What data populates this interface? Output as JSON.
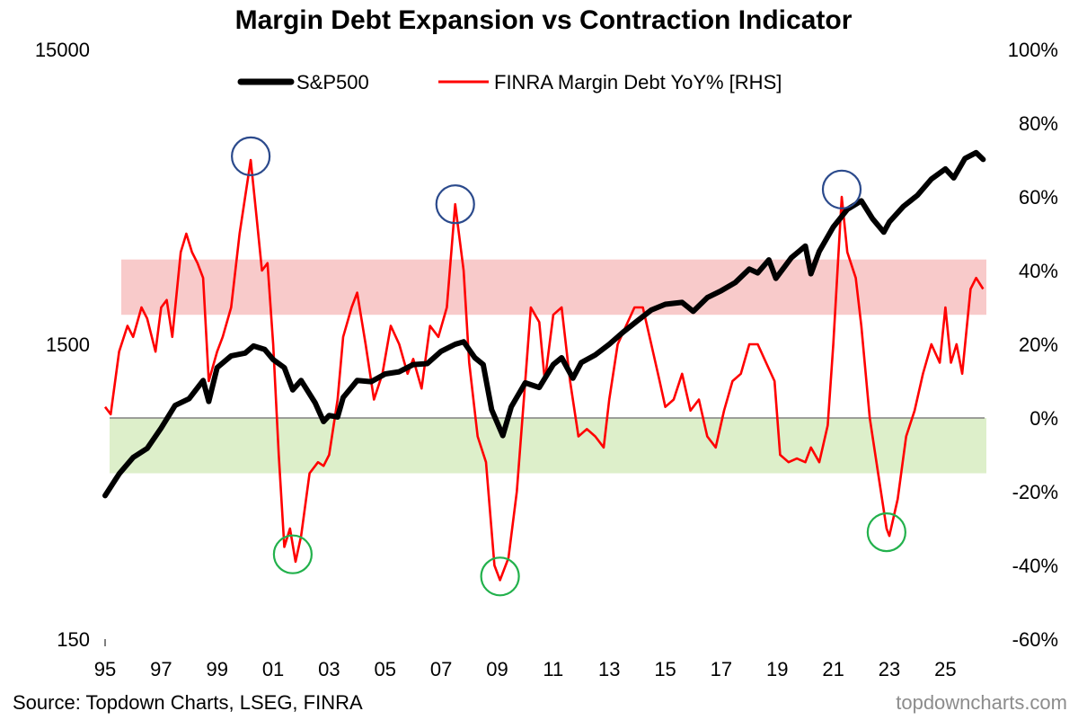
{
  "chart_data": {
    "type": "line",
    "title": "Margin Debt Expansion vs Contraction Indicator",
    "x_ticks": [
      "95",
      "97",
      "99",
      "01",
      "03",
      "05",
      "07",
      "09",
      "11",
      "13",
      "15",
      "17",
      "19",
      "21",
      "23",
      "25"
    ],
    "x_tick_years": [
      1995,
      1997,
      1999,
      2001,
      2003,
      2005,
      2007,
      2009,
      2011,
      2013,
      2015,
      2017,
      2019,
      2021,
      2023,
      2025
    ],
    "xlim": [
      1995,
      2026.4
    ],
    "left_axis": {
      "scale": "log",
      "ylim": [
        150,
        15000
      ],
      "ticks": [
        150,
        1500,
        15000
      ],
      "tick_labels": [
        "150",
        "1500",
        "15000"
      ]
    },
    "right_axis": {
      "ylim": [
        -60,
        100
      ],
      "ticks": [
        -60,
        -40,
        -20,
        0,
        20,
        40,
        60,
        80,
        100
      ],
      "tick_labels": [
        "-60%",
        "-40%",
        "-20%",
        "0%",
        "20%",
        "40%",
        "60%",
        "80%",
        "100%"
      ]
    },
    "legend": [
      {
        "name": "S&P500",
        "color": "#000000"
      },
      {
        "name": "FINRA Margin Debt YoY% [RHS]",
        "color": "#ff0000"
      }
    ],
    "bands": [
      {
        "name": "expansion-zone",
        "from": 28,
        "to": 43,
        "color": "#f4a6a6"
      },
      {
        "name": "contraction-zone",
        "from": -15,
        "to": 0,
        "color": "#cfe8b4"
      }
    ],
    "zero_line": 0,
    "series": [
      {
        "name": "S&P500",
        "axis": "left",
        "color": "#000000",
        "points": [
          [
            1995.0,
            460
          ],
          [
            1995.5,
            545
          ],
          [
            1996.0,
            620
          ],
          [
            1996.5,
            665
          ],
          [
            1997.0,
            780
          ],
          [
            1997.5,
            930
          ],
          [
            1998.0,
            980
          ],
          [
            1998.5,
            1130
          ],
          [
            1998.7,
            960
          ],
          [
            1999.0,
            1250
          ],
          [
            1999.5,
            1370
          ],
          [
            2000.0,
            1400
          ],
          [
            2000.3,
            1480
          ],
          [
            2000.7,
            1440
          ],
          [
            2001.0,
            1330
          ],
          [
            2001.4,
            1250
          ],
          [
            2001.7,
            1050
          ],
          [
            2002.0,
            1130
          ],
          [
            2002.5,
            950
          ],
          [
            2002.8,
            820
          ],
          [
            2003.0,
            860
          ],
          [
            2003.3,
            850
          ],
          [
            2003.5,
            990
          ],
          [
            2004.0,
            1130
          ],
          [
            2004.5,
            1120
          ],
          [
            2005.0,
            1190
          ],
          [
            2005.5,
            1210
          ],
          [
            2006.0,
            1280
          ],
          [
            2006.5,
            1290
          ],
          [
            2007.0,
            1420
          ],
          [
            2007.5,
            1500
          ],
          [
            2007.8,
            1530
          ],
          [
            2008.2,
            1350
          ],
          [
            2008.5,
            1280
          ],
          [
            2008.8,
            900
          ],
          [
            2009.2,
            735
          ],
          [
            2009.5,
            920
          ],
          [
            2010.0,
            1110
          ],
          [
            2010.5,
            1070
          ],
          [
            2011.0,
            1280
          ],
          [
            2011.3,
            1350
          ],
          [
            2011.7,
            1150
          ],
          [
            2012.0,
            1300
          ],
          [
            2012.5,
            1380
          ],
          [
            2013.0,
            1500
          ],
          [
            2013.5,
            1650
          ],
          [
            2014.0,
            1800
          ],
          [
            2014.5,
            1960
          ],
          [
            2015.0,
            2050
          ],
          [
            2015.6,
            2080
          ],
          [
            2016.0,
            1940
          ],
          [
            2016.5,
            2160
          ],
          [
            2017.0,
            2280
          ],
          [
            2017.5,
            2430
          ],
          [
            2018.0,
            2700
          ],
          [
            2018.3,
            2620
          ],
          [
            2018.7,
            2900
          ],
          [
            2018.95,
            2510
          ],
          [
            2019.5,
            2950
          ],
          [
            2020.0,
            3230
          ],
          [
            2020.2,
            2600
          ],
          [
            2020.5,
            3100
          ],
          [
            2021.0,
            3750
          ],
          [
            2021.5,
            4300
          ],
          [
            2022.0,
            4600
          ],
          [
            2022.4,
            4000
          ],
          [
            2022.8,
            3600
          ],
          [
            2023.0,
            3900
          ],
          [
            2023.5,
            4400
          ],
          [
            2024.0,
            4800
          ],
          [
            2024.5,
            5450
          ],
          [
            2025.0,
            5900
          ],
          [
            2025.3,
            5500
          ],
          [
            2025.7,
            6400
          ],
          [
            2026.1,
            6700
          ],
          [
            2026.35,
            6350
          ]
        ]
      },
      {
        "name": "FINRA Margin Debt YoY% [RHS]",
        "axis": "right",
        "color": "#ff0000",
        "points": [
          [
            1995.0,
            3
          ],
          [
            1995.2,
            1
          ],
          [
            1995.5,
            18
          ],
          [
            1995.8,
            25
          ],
          [
            1996.0,
            22
          ],
          [
            1996.3,
            30
          ],
          [
            1996.5,
            27
          ],
          [
            1996.8,
            18
          ],
          [
            1997.0,
            30
          ],
          [
            1997.2,
            32
          ],
          [
            1997.4,
            22
          ],
          [
            1997.7,
            45
          ],
          [
            1997.9,
            50
          ],
          [
            1998.1,
            45
          ],
          [
            1998.3,
            42
          ],
          [
            1998.5,
            38
          ],
          [
            1998.7,
            10
          ],
          [
            1999.0,
            18
          ],
          [
            1999.2,
            22
          ],
          [
            1999.5,
            30
          ],
          [
            1999.8,
            50
          ],
          [
            2000.0,
            60
          ],
          [
            2000.2,
            70
          ],
          [
            2000.4,
            55
          ],
          [
            2000.6,
            40
          ],
          [
            2000.8,
            42
          ],
          [
            2001.0,
            20
          ],
          [
            2001.2,
            -10
          ],
          [
            2001.4,
            -35
          ],
          [
            2001.6,
            -30
          ],
          [
            2001.8,
            -39
          ],
          [
            2002.0,
            -32
          ],
          [
            2002.3,
            -15
          ],
          [
            2002.6,
            -12
          ],
          [
            2002.8,
            -13
          ],
          [
            2003.0,
            -10
          ],
          [
            2003.3,
            5
          ],
          [
            2003.5,
            22
          ],
          [
            2003.8,
            30
          ],
          [
            2004.0,
            34
          ],
          [
            2004.3,
            20
          ],
          [
            2004.6,
            5
          ],
          [
            2004.9,
            12
          ],
          [
            2005.2,
            25
          ],
          [
            2005.5,
            20
          ],
          [
            2005.8,
            12
          ],
          [
            2006.0,
            16
          ],
          [
            2006.3,
            8
          ],
          [
            2006.6,
            25
          ],
          [
            2006.9,
            22
          ],
          [
            2007.2,
            30
          ],
          [
            2007.5,
            58
          ],
          [
            2007.8,
            40
          ],
          [
            2008.0,
            15
          ],
          [
            2008.3,
            -5
          ],
          [
            2008.6,
            -12
          ],
          [
            2008.9,
            -40
          ],
          [
            2009.1,
            -44
          ],
          [
            2009.4,
            -38
          ],
          [
            2009.7,
            -20
          ],
          [
            2010.0,
            10
          ],
          [
            2010.2,
            30
          ],
          [
            2010.5,
            26
          ],
          [
            2010.7,
            10
          ],
          [
            2011.0,
            28
          ],
          [
            2011.3,
            30
          ],
          [
            2011.6,
            10
          ],
          [
            2011.9,
            -5
          ],
          [
            2012.2,
            -3
          ],
          [
            2012.5,
            -5
          ],
          [
            2012.8,
            -8
          ],
          [
            2013.0,
            5
          ],
          [
            2013.3,
            20
          ],
          [
            2013.6,
            25
          ],
          [
            2013.9,
            30
          ],
          [
            2014.2,
            30
          ],
          [
            2014.5,
            20
          ],
          [
            2014.8,
            10
          ],
          [
            2015.0,
            3
          ],
          [
            2015.3,
            5
          ],
          [
            2015.6,
            12
          ],
          [
            2015.9,
            2
          ],
          [
            2016.2,
            5
          ],
          [
            2016.5,
            -5
          ],
          [
            2016.8,
            -8
          ],
          [
            2017.1,
            2
          ],
          [
            2017.4,
            10
          ],
          [
            2017.7,
            12
          ],
          [
            2018.0,
            20
          ],
          [
            2018.3,
            20
          ],
          [
            2018.6,
            15
          ],
          [
            2018.9,
            10
          ],
          [
            2019.1,
            -10
          ],
          [
            2019.4,
            -12
          ],
          [
            2019.7,
            -11
          ],
          [
            2020.0,
            -12
          ],
          [
            2020.2,
            -8
          ],
          [
            2020.5,
            -12
          ],
          [
            2020.8,
            -2
          ],
          [
            2021.0,
            20
          ],
          [
            2021.3,
            60
          ],
          [
            2021.5,
            45
          ],
          [
            2021.8,
            38
          ],
          [
            2022.0,
            25
          ],
          [
            2022.3,
            0
          ],
          [
            2022.6,
            -15
          ],
          [
            2022.9,
            -30
          ],
          [
            2023.0,
            -32
          ],
          [
            2023.3,
            -22
          ],
          [
            2023.6,
            -5
          ],
          [
            2023.9,
            2
          ],
          [
            2024.2,
            12
          ],
          [
            2024.5,
            20
          ],
          [
            2024.8,
            15
          ],
          [
            2025.0,
            30
          ],
          [
            2025.2,
            15
          ],
          [
            2025.4,
            20
          ],
          [
            2025.6,
            12
          ],
          [
            2025.9,
            35
          ],
          [
            2026.1,
            38
          ],
          [
            2026.35,
            35
          ]
        ]
      }
    ],
    "annotations": [
      {
        "name": "peak-2000",
        "kind": "peak",
        "x": 2000.2,
        "y": 71,
        "color": "#2b4a8c"
      },
      {
        "name": "peak-2007",
        "kind": "peak",
        "x": 2007.5,
        "y": 58,
        "color": "#2b4a8c"
      },
      {
        "name": "peak-2021",
        "kind": "peak",
        "x": 2021.3,
        "y": 62,
        "color": "#2b4a8c"
      },
      {
        "name": "trough-2001",
        "kind": "trough",
        "x": 2001.7,
        "y": -37,
        "color": "#22b14c"
      },
      {
        "name": "trough-2009",
        "kind": "trough",
        "x": 2009.1,
        "y": -43,
        "color": "#22b14c"
      },
      {
        "name": "trough-2022",
        "kind": "trough",
        "x": 2022.9,
        "y": -31,
        "color": "#22b14c"
      }
    ]
  },
  "footer": {
    "source": "Source: Topdown Charts, LSEG, FINRA",
    "watermark": "topdowncharts.com"
  }
}
